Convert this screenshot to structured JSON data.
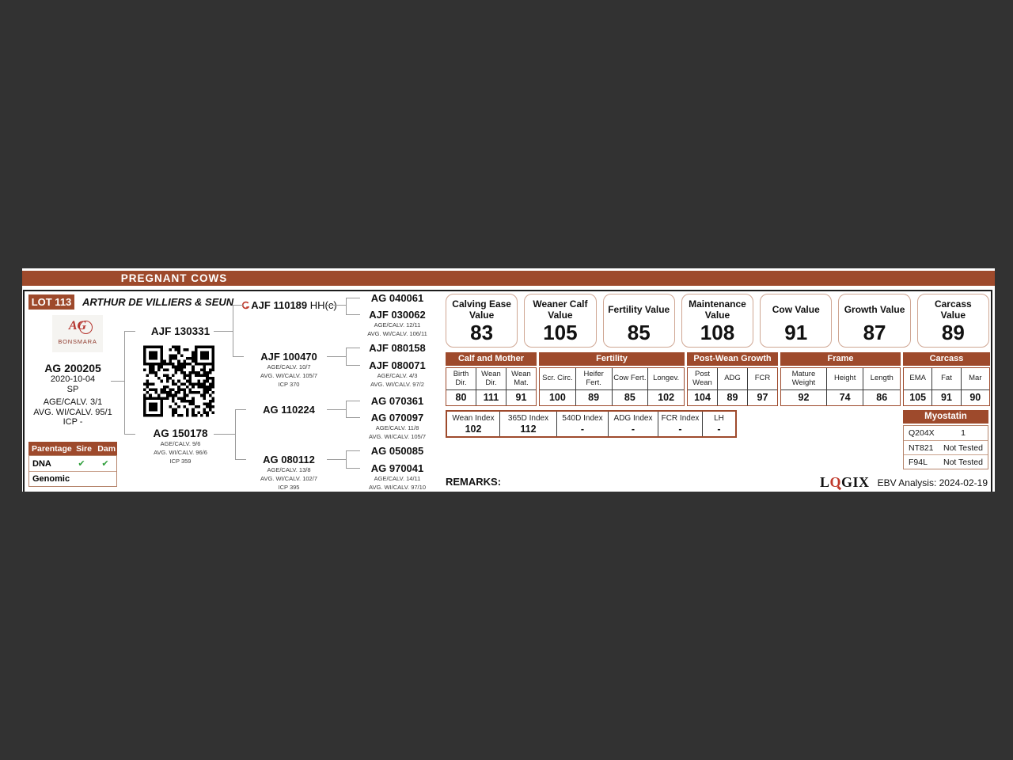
{
  "colors": {
    "accent_brown": "#9e4a2c",
    "logo_red": "#b5342e",
    "check_green": "#2e9e3a",
    "background_dark": "#323232"
  },
  "header": {
    "section_title": "PREGNANT COWS",
    "lot": "LOT 113",
    "owner": "ARTHUR DE VILLIERS & SEUN"
  },
  "brand": {
    "monogram": "AG",
    "name": "BONSMARA"
  },
  "animal": {
    "id": "AG 200205",
    "birth_date": "2020-10-04",
    "code": "SP",
    "age_calv": "AGE/CALV. 3/1",
    "avg_wi_calv": "AVG. WI/CALV. 95/1",
    "icp": "ICP -"
  },
  "parentage": {
    "header": {
      "label": "Parentage",
      "sire": "Sire",
      "dam": "Dam"
    },
    "rows": [
      {
        "label": "DNA",
        "sire": "✔",
        "dam": "✔"
      },
      {
        "label": "Genomic",
        "sire": "",
        "dam": ""
      }
    ]
  },
  "pedigree": {
    "sire": {
      "id": "AJF 130331"
    },
    "dam": {
      "id": "AG 150178",
      "lines": [
        "AGE/CALV. 9/6",
        "AVG. WI/CALV. 96/6",
        "ICP 359"
      ]
    },
    "gen2": [
      {
        "id": "AJF 110189",
        "suffix": "HH(c)"
      },
      {
        "id": "AJF 100470",
        "lines": [
          "AGE/CALV. 10/7",
          "AVG. WI/CALV. 105/7",
          "ICP 370"
        ]
      },
      {
        "id": "AG 110224"
      },
      {
        "id": "AG 080112",
        "lines": [
          "AGE/CALV. 13/8",
          "AVG. WI/CALV. 102/7",
          "ICP 395"
        ]
      }
    ],
    "gen3": [
      {
        "id": "AG 040061"
      },
      {
        "id": "AJF 030062",
        "lines": [
          "AGE/CALV. 12/11",
          "AVG. WI/CALV. 106/11"
        ]
      },
      {
        "id": "AJF 080158"
      },
      {
        "id": "AJF 080071",
        "lines": [
          "AGE/CALV. 4/3",
          "AVG. WI/CALV. 97/2"
        ]
      },
      {
        "id": "AG 070361"
      },
      {
        "id": "AG 070097",
        "lines": [
          "AGE/CALV. 11/8",
          "AVG. WI/CALV. 105/7"
        ]
      },
      {
        "id": "AG 050085"
      },
      {
        "id": "AG 970041",
        "lines": [
          "AGE/CALV. 14/11",
          "AVG. WI/CALV. 97/10"
        ]
      }
    ]
  },
  "values": [
    {
      "label": "Calving Ease Value",
      "value": "83"
    },
    {
      "label": "Weaner Calf Value",
      "value": "105"
    },
    {
      "label": "Fertility Value",
      "value": "85"
    },
    {
      "label": "Maintenance Value",
      "value": "108"
    },
    {
      "label": "Cow Value",
      "value": "91"
    },
    {
      "label": "Growth Value",
      "value": "87"
    },
    {
      "label": "Carcass Value",
      "value": "89"
    }
  ],
  "ebv_table": {
    "groups": [
      {
        "name": "Calf and Mother",
        "cols": [
          {
            "label": "Birth Dir.",
            "value": "80"
          },
          {
            "label": "Wean Dir.",
            "value": "111"
          },
          {
            "label": "Wean Mat.",
            "value": "91"
          }
        ]
      },
      {
        "name": "Fertility",
        "cols": [
          {
            "label": "Scr. Circ.",
            "value": "100"
          },
          {
            "label": "Heifer Fert.",
            "value": "89"
          },
          {
            "label": "Cow Fert.",
            "value": "85"
          },
          {
            "label": "Longev.",
            "value": "102"
          }
        ]
      },
      {
        "name": "Post-Wean Growth",
        "cols": [
          {
            "label": "Post Wean",
            "value": "104"
          },
          {
            "label": "ADG",
            "value": "89"
          },
          {
            "label": "FCR",
            "value": "97"
          }
        ]
      },
      {
        "name": "Frame",
        "cols": [
          {
            "label": "Mature Weight",
            "value": "92"
          },
          {
            "label": "Height",
            "value": "74"
          },
          {
            "label": "Length",
            "value": "86"
          }
        ]
      },
      {
        "name": "Carcass",
        "cols": [
          {
            "label": "EMA",
            "value": "105"
          },
          {
            "label": "Fat",
            "value": "91"
          },
          {
            "label": "Mar",
            "value": "90"
          }
        ]
      }
    ]
  },
  "indices": [
    {
      "label": "Wean Index",
      "value": "102"
    },
    {
      "label": "365D Index",
      "value": "112"
    },
    {
      "label": "540D Index",
      "value": "-"
    },
    {
      "label": "ADG Index",
      "value": "-"
    },
    {
      "label": "FCR Index",
      "value": "-"
    },
    {
      "label": "LH",
      "value": "-"
    }
  ],
  "myostatin": {
    "title": "Myostatin",
    "rows": [
      {
        "gene": "Q204X",
        "result": "1"
      },
      {
        "gene": "NT821",
        "result": "Not Tested"
      },
      {
        "gene": "F94L",
        "result": "Not Tested"
      }
    ]
  },
  "footer": {
    "remarks_label": "REMARKS:",
    "logix": {
      "l": "L",
      "o": "O",
      "gix": "GIX"
    },
    "ebv_analysis": "EBV Analysis: 2024-02-19"
  }
}
